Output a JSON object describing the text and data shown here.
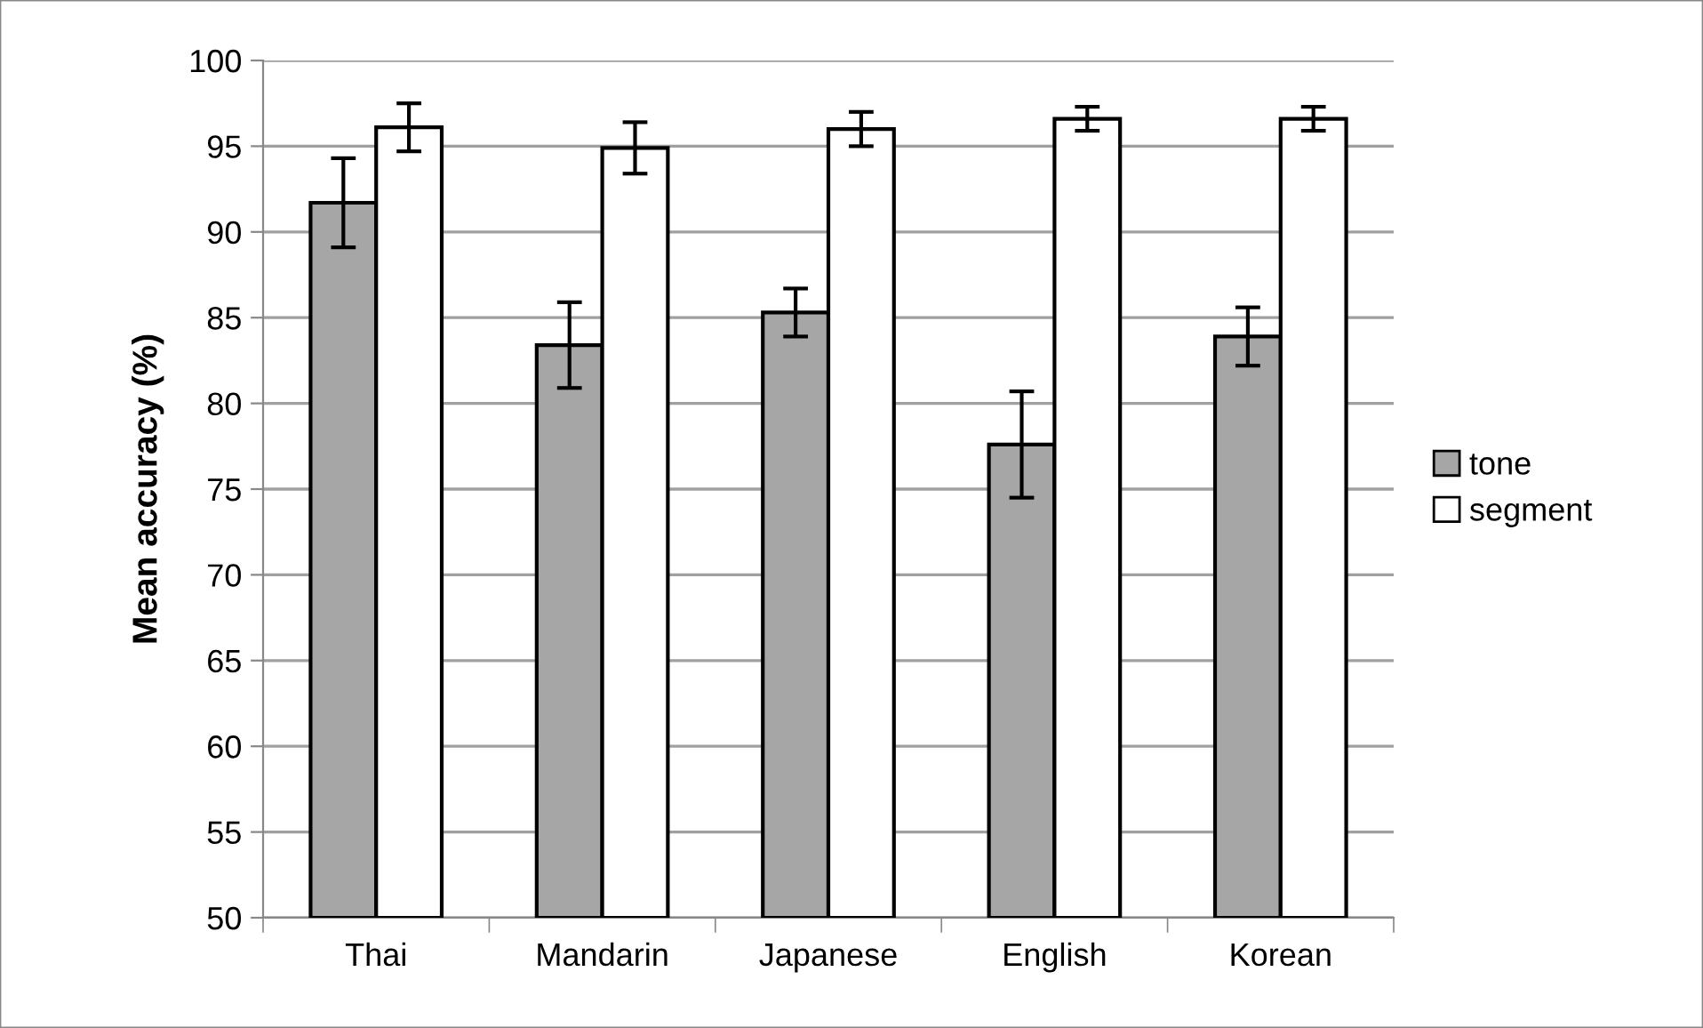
{
  "chart_data": {
    "type": "bar",
    "ylabel": "Mean accuracy (%)",
    "categories": [
      "Thai",
      "Mandarin",
      "Japanese",
      "English",
      "Korean"
    ],
    "series": [
      {
        "name": "tone",
        "color": "#a6a6a6",
        "values": [
          91.7,
          83.4,
          85.3,
          77.6,
          83.9
        ],
        "errors": [
          2.6,
          2.5,
          1.4,
          3.1,
          1.7
        ]
      },
      {
        "name": "segment",
        "color": "#ffffff",
        "values": [
          96.1,
          94.9,
          96.0,
          96.6,
          96.6
        ],
        "errors": [
          1.4,
          1.5,
          1.0,
          0.7,
          0.7
        ]
      }
    ],
    "ylim": [
      50,
      100
    ],
    "yticks": [
      50,
      55,
      60,
      65,
      70,
      75,
      80,
      85,
      90,
      95,
      100
    ],
    "grid": "y",
    "legend": "right"
  }
}
